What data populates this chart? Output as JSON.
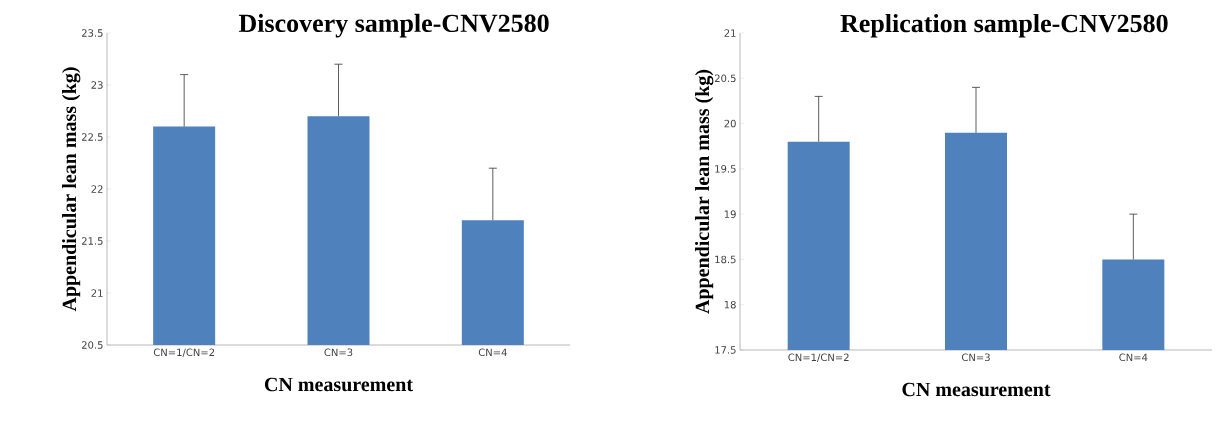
{
  "chart_data": [
    {
      "type": "bar",
      "title": "Discovery sample-CNV2580",
      "xlabel": "CN measurement",
      "ylabel": "Appendicular lean mass (kg)",
      "categories": [
        "CN=1/CN=2",
        "CN=3",
        "CN=4"
      ],
      "values": [
        22.6,
        22.7,
        21.7
      ],
      "errors": [
        [
          22.6,
          23.1
        ],
        [
          22.7,
          23.2
        ],
        [
          21.7,
          22.2
        ]
      ],
      "color": "#4f81bd",
      "ylim": [
        20.5,
        23.5
      ],
      "yticks": [
        20.5,
        21,
        21.5,
        22,
        22.5,
        23,
        23.5
      ]
    },
    {
      "type": "bar",
      "title": "Replication sample-CNV2580",
      "xlabel": "CN measurement",
      "ylabel": "Appendicular lean mass (kg)",
      "categories": [
        "CN=1/CN=2",
        "CN=3",
        "CN=4"
      ],
      "values": [
        19.8,
        19.9,
        18.5
      ],
      "errors": [
        [
          19.8,
          20.3
        ],
        [
          19.9,
          20.4
        ],
        [
          18.5,
          19.0
        ]
      ],
      "color": "#4f81bd",
      "ylim": [
        17.5,
        21
      ],
      "yticks": [
        17.5,
        18,
        18.5,
        19,
        19.5,
        20,
        20.5,
        21
      ]
    }
  ]
}
